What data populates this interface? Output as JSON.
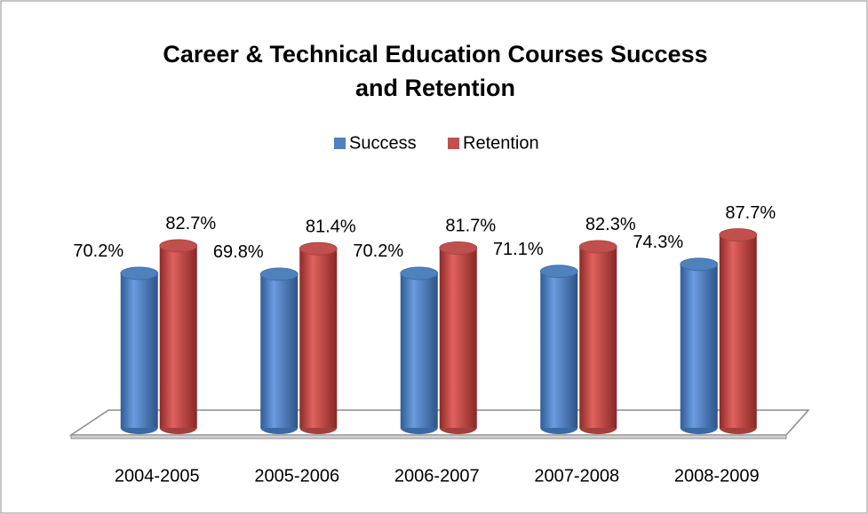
{
  "chart_data": {
    "type": "bar",
    "title": [
      "Career & Technical Education Courses Success",
      "and Retention"
    ],
    "categories": [
      "2004-2005",
      "2005-2006",
      "2006-2007",
      "2007-2008",
      "2008-2009"
    ],
    "series": [
      {
        "name": "Success",
        "color": "#4f81bd",
        "values": [
          70.2,
          69.8,
          70.2,
          71.1,
          74.3
        ],
        "value_labels": [
          "70.2%",
          "69.8%",
          "70.2%",
          "71.1%",
          "74.3%"
        ]
      },
      {
        "name": "Retention",
        "color": "#c0504d",
        "values": [
          82.7,
          81.4,
          81.7,
          82.3,
          87.7
        ],
        "value_labels": [
          "82.7%",
          "81.4%",
          "81.7%",
          "82.3%",
          "87.7%"
        ]
      }
    ],
    "ylim": [
      0,
      100
    ]
  }
}
